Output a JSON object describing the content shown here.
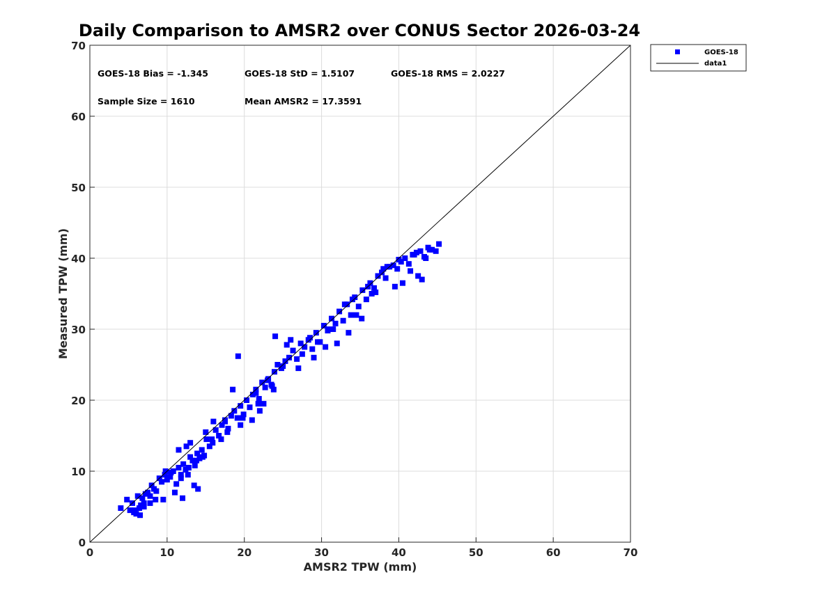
{
  "chart_data": {
    "type": "scatter",
    "title": "Daily Comparison to AMSR2 over CONUS Sector 2026-03-24",
    "xlabel": "AMSR2 TPW (mm)",
    "ylabel": "Measured TPW (mm)",
    "xlim": [
      0,
      70
    ],
    "ylim": [
      0,
      70
    ],
    "xticks": [
      "0",
      "10",
      "20",
      "30",
      "40",
      "50",
      "60",
      "70"
    ],
    "yticks": [
      "0",
      "10",
      "20",
      "30",
      "40",
      "50",
      "60",
      "70"
    ],
    "grid": true,
    "legend_position": "outside-top-right",
    "stats": {
      "bias": "GOES-18 Bias = -1.345",
      "std": "GOES-18 StD = 1.5107",
      "rms": "GOES-18 RMS = 2.0227",
      "sample_size": "Sample Size = 1610",
      "mean": "Mean AMSR2 = 17.3591"
    },
    "series": [
      {
        "name": "GOES-18",
        "marker": "square",
        "color": "#0000ff",
        "x": [
          4.0,
          4.8,
          5.2,
          5.5,
          5.7,
          6.0,
          6.2,
          6.4,
          6.6,
          6.8,
          7.0,
          7.2,
          7.5,
          7.8,
          8.0,
          8.3,
          8.6,
          9.0,
          9.3,
          9.7,
          10.0,
          10.4,
          10.8,
          11.2,
          11.5,
          11.8,
          12.1,
          12.4,
          12.7,
          13.0,
          13.3,
          13.6,
          13.9,
          14.2,
          14.5,
          14.8,
          15.1,
          15.5,
          15.9,
          16.3,
          16.7,
          17.1,
          17.5,
          17.9,
          18.3,
          18.7,
          19.1,
          19.5,
          19.9,
          20.3,
          20.7,
          21.1,
          21.5,
          21.9,
          22.3,
          22.7,
          23.1,
          23.5,
          23.9,
          24.3,
          24.8,
          25.3,
          25.8,
          26.3,
          26.8,
          27.3,
          27.8,
          28.3,
          28.8,
          29.3,
          29.8,
          30.3,
          30.8,
          31.3,
          31.8,
          32.3,
          32.8,
          33.3,
          33.8,
          34.3,
          34.8,
          35.3,
          35.8,
          36.3,
          36.8,
          37.3,
          37.8,
          38.3,
          38.8,
          39.3,
          39.8,
          40.3,
          40.8,
          41.3,
          41.8,
          42.3,
          42.8,
          43.3,
          43.8,
          44.3,
          44.8,
          45.2,
          6.5,
          7.8,
          9.5,
          11.0,
          12.0,
          13.5,
          14.0,
          12.5,
          11.5,
          13.0,
          15.0,
          16.0,
          17.0,
          18.5,
          19.5,
          21.0,
          22.0,
          23.0,
          24.0,
          26.0,
          27.0,
          29.0,
          30.5,
          32.0,
          33.5,
          34.5,
          36.5,
          38.0,
          40.5,
          42.5,
          43.0,
          21.5,
          23.6,
          17.5,
          19.2,
          22.5,
          25.5,
          28.5,
          31.0,
          33.0,
          35.2,
          37.0,
          39.5,
          41.5,
          43.5,
          12.8,
          14.6,
          10.5,
          8.5,
          7.0,
          5.8,
          9.8,
          11.8,
          13.8,
          15.8,
          17.8,
          19.8,
          21.8,
          23.8,
          25.0,
          27.5,
          29.5,
          31.5,
          34.0,
          36.0,
          38.5,
          40.0,
          42.0,
          44.0
        ],
        "y": [
          4.8,
          6.0,
          4.5,
          5.5,
          4.2,
          4.0,
          6.5,
          4.8,
          5.2,
          6.2,
          5.0,
          6.8,
          7.0,
          6.5,
          8.0,
          7.5,
          7.2,
          9.0,
          8.5,
          9.5,
          8.8,
          9.2,
          10.0,
          8.2,
          10.5,
          9.0,
          11.0,
          10.2,
          9.5,
          12.0,
          11.5,
          10.8,
          12.5,
          11.8,
          13.0,
          12.2,
          14.5,
          13.5,
          14.0,
          15.8,
          15.0,
          16.5,
          17.2,
          16.0,
          17.8,
          18.5,
          17.5,
          19.2,
          18.0,
          20.0,
          19.0,
          20.8,
          21.5,
          20.2,
          22.5,
          21.8,
          23.0,
          22.2,
          24.0,
          25.0,
          24.5,
          25.5,
          26.0,
          27.0,
          25.8,
          28.0,
          27.5,
          28.5,
          27.2,
          29.5,
          28.2,
          30.5,
          29.8,
          31.5,
          30.8,
          32.5,
          31.2,
          33.5,
          32.0,
          34.5,
          33.2,
          35.5,
          34.2,
          36.5,
          35.8,
          37.5,
          38.0,
          37.2,
          38.8,
          39.0,
          38.5,
          39.5,
          40.0,
          39.2,
          40.5,
          40.8,
          41.0,
          40.2,
          41.5,
          41.2,
          41.0,
          42.0,
          3.8,
          5.5,
          6.0,
          7.0,
          6.2,
          8.0,
          7.5,
          13.5,
          13.0,
          14.0,
          15.5,
          17.0,
          14.5,
          21.5,
          16.5,
          17.2,
          18.5,
          22.8,
          29.0,
          28.5,
          24.5,
          26.0,
          27.5,
          28.0,
          29.5,
          32.0,
          35.0,
          38.5,
          36.5,
          37.5,
          37.0,
          21.0,
          22.0,
          17.0,
          26.2,
          19.5,
          27.8,
          28.8,
          30.0,
          33.5,
          31.5,
          35.2,
          36.0,
          38.2,
          40.0,
          10.5,
          12.0,
          9.8,
          6.0,
          5.5,
          4.5,
          10.0,
          9.5,
          11.5,
          14.5,
          15.5,
          17.5,
          19.5,
          21.5,
          24.8,
          26.5,
          28.2,
          30.0,
          34.2,
          36.0,
          38.8,
          39.8,
          40.5,
          41.2
        ]
      },
      {
        "name": "data1",
        "line": true,
        "color": "#000000",
        "x": [
          0,
          70
        ],
        "y": [
          0,
          70
        ]
      }
    ]
  }
}
